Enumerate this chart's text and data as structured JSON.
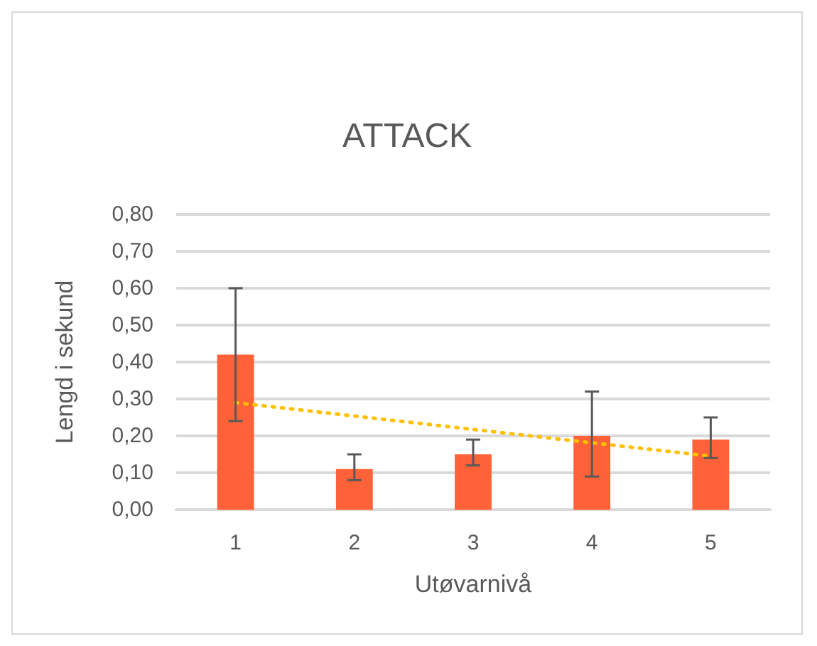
{
  "chart_data": {
    "type": "bar",
    "title": "ATTACK",
    "xlabel": "Utøvarnivå",
    "ylabel": "Lengd i sekund",
    "categories": [
      "1",
      "2",
      "3",
      "4",
      "5"
    ],
    "series": [
      {
        "color": "#ff6138",
        "values": [
          0.42,
          0.11,
          0.15,
          0.2,
          0.19
        ],
        "errors": [
          [
            0.24,
            0.6
          ],
          [
            0.08,
            0.15
          ],
          [
            0.12,
            0.19
          ],
          [
            0.09,
            0.32
          ],
          [
            0.14,
            0.25
          ]
        ]
      },
      {
        "type": "line",
        "color": "#ffc000",
        "x": [
          "1",
          "5"
        ],
        "values": [
          0.29,
          0.145
        ],
        "line_style": "dotted"
      }
    ],
    "ylim": [
      0,
      0.8
    ],
    "yticks": [
      {
        "value": 0,
        "label": "0,00"
      },
      {
        "value": 0.1,
        "label": "0,10"
      },
      {
        "value": 0.2,
        "label": "0,20"
      },
      {
        "value": 0.3,
        "label": "0,30"
      },
      {
        "value": 0.4,
        "label": "0,40"
      },
      {
        "value": 0.5,
        "label": "0,50"
      },
      {
        "value": 0.6,
        "label": "0,60"
      },
      {
        "value": 0.7,
        "label": "0,70"
      },
      {
        "value": 0.8,
        "label": "0,80"
      }
    ],
    "grid": "y"
  }
}
